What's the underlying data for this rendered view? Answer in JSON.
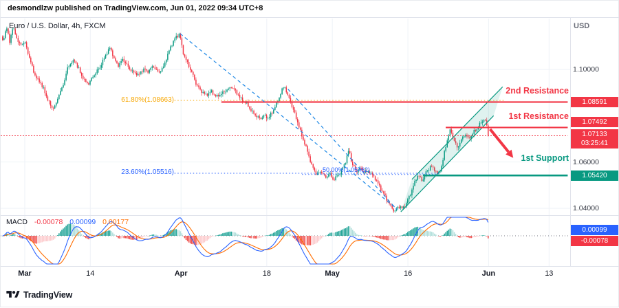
{
  "meta": {
    "published_line": "desmondlzw published on TradingView.com, Jun 01, 2022 09:34 UTC+8",
    "symbol_title": "Euro / U.S. Dollar, 4h, FXCM",
    "currency_label": "USD",
    "brand_name": "TradingView"
  },
  "badges": {
    "res2": "1.08591",
    "res1": "1.07492",
    "last_price": "1.07133",
    "countdown": "03:25:41",
    "support": "1.05420",
    "macd_value": "0.00099",
    "hist_value": "-0.00078"
  },
  "annotations": {
    "res2_text": "2nd Resistance",
    "res1_text": "1st Resistance",
    "sup_text": "1st Support",
    "fib618_label": "61.80%(1.08663)",
    "fib236_label": "23.60%(1.05516)",
    "fib50_label": "50.00%(1.05462)"
  },
  "macd_row": {
    "label": "MACD",
    "hist": "-0.00078",
    "macd": "0.00099",
    "signal": "0.00177"
  },
  "colors": {
    "up": "#089981",
    "down": "#f23645",
    "macd_line": "#2962ff",
    "signal_line": "#ff6d00",
    "hist_pos": "#26a69a",
    "hist_pos_weak": "#b2dfdb",
    "hist_neg": "#ef5350",
    "hist_neg_weak": "#fccbcd",
    "resistance": "#f23645",
    "support": "#089981",
    "fib_618": "#f7a600",
    "fib_236": "#2962ff",
    "trendline": "#1e88e5",
    "grid": "#eef2f7",
    "divider": "#e0e3eb",
    "channel_fill": "rgba(8,153,129,0.13)",
    "channel_line": "#089981",
    "arrow": "#f23645"
  },
  "chart_data": {
    "type": "candlestick",
    "symbol": "Euro / U.S. Dollar",
    "timeframe": "4h",
    "exchange": "FXCM",
    "x_unit": "days since Mar 1 2022",
    "x_domain_days": [
      -4.8,
      107.7
    ],
    "ylim": [
      1.03,
      1.124
    ],
    "last_close": 1.07133,
    "axes": {
      "price_ticks": [
        {
          "label": "1.10000",
          "price": 1.1
        },
        {
          "label": "1.06000",
          "price": 1.06
        },
        {
          "label": "1.04000",
          "price": 1.04
        }
      ],
      "time_ticks": [
        {
          "label": "Mar",
          "day": 0,
          "major": true
        },
        {
          "label": "14",
          "day": 13,
          "major": false
        },
        {
          "label": "Apr",
          "day": 31,
          "major": true
        },
        {
          "label": "18",
          "day": 48,
          "major": false
        },
        {
          "label": "May",
          "day": 61,
          "major": true
        },
        {
          "label": "16",
          "day": 76,
          "major": false
        },
        {
          "label": "Jun",
          "day": 92,
          "major": true
        },
        {
          "label": "13",
          "day": 104,
          "major": false
        }
      ]
    },
    "price_waypoints": [
      [
        -4.4,
        1.1125
      ],
      [
        -3.6,
        1.118
      ],
      [
        -3.0,
        1.112
      ],
      [
        -2.4,
        1.1185
      ],
      [
        -1.8,
        1.115
      ],
      [
        -1.0,
        1.1105
      ],
      [
        0,
        1.112
      ],
      [
        0.8,
        1.106
      ],
      [
        1.6,
        1.1
      ],
      [
        2.4,
        1.096
      ],
      [
        3.2,
        1.094
      ],
      [
        4.0,
        1.09
      ],
      [
        4.8,
        1.0855
      ],
      [
        5.5,
        1.083
      ],
      [
        6.1,
        1.0845
      ],
      [
        6.8,
        1.0895
      ],
      [
        7.6,
        1.093
      ],
      [
        8.4,
        1.1
      ],
      [
        9.2,
        1.103
      ],
      [
        10.0,
        1.1038
      ],
      [
        10.9,
        1.099
      ],
      [
        11.8,
        1.0955
      ],
      [
        12.6,
        1.0935
      ],
      [
        13.3,
        1.096
      ],
      [
        14.2,
        1.099
      ],
      [
        15.0,
        1.101
      ],
      [
        16.0,
        1.106
      ],
      [
        17.0,
        1.1095
      ],
      [
        17.8,
        1.104
      ],
      [
        18.6,
        1.1015
      ],
      [
        19.5,
        1.1045
      ],
      [
        20.5,
        1.101
      ],
      [
        21.5,
        1.099
      ],
      [
        22.5,
        1.0975
      ],
      [
        23.5,
        1.1
      ],
      [
        24.5,
        1.099
      ],
      [
        25.5,
        1.1015
      ],
      [
        26.5,
        1.0985
      ],
      [
        27.5,
        1.101
      ],
      [
        28.3,
        1.106
      ],
      [
        29.1,
        1.1105
      ],
      [
        30.0,
        1.114
      ],
      [
        30.7,
        1.1155
      ],
      [
        31.3,
        1.108
      ],
      [
        32.0,
        1.104
      ],
      [
        33.0,
        1.0995
      ],
      [
        34.0,
        1.094
      ],
      [
        35.0,
        1.0905
      ],
      [
        36.0,
        1.089
      ],
      [
        37.0,
        1.0905
      ],
      [
        38.0,
        1.088
      ],
      [
        39.0,
        1.0895
      ],
      [
        40.0,
        1.091
      ],
      [
        41.0,
        1.0925
      ],
      [
        42.0,
        1.09
      ],
      [
        43.0,
        1.087
      ],
      [
        44.0,
        1.0852
      ],
      [
        45.0,
        1.082
      ],
      [
        45.8,
        1.08
      ],
      [
        46.6,
        1.0785
      ],
      [
        47.4,
        1.08
      ],
      [
        48.2,
        1.079
      ],
      [
        49.0,
        1.081
      ],
      [
        50.0,
        1.0855
      ],
      [
        51.0,
        1.091
      ],
      [
        51.6,
        1.0925
      ],
      [
        52.3,
        1.088
      ],
      [
        53.0,
        1.084
      ],
      [
        54.0,
        1.078
      ],
      [
        55.0,
        1.071
      ],
      [
        56.0,
        1.065
      ],
      [
        57.0,
        1.058
      ],
      [
        58.0,
        1.0545
      ],
      [
        58.8,
        1.056
      ],
      [
        59.6,
        1.053
      ],
      [
        60.4,
        1.0555
      ],
      [
        61.2,
        1.052
      ],
      [
        62.0,
        1.054
      ],
      [
        62.8,
        1.056
      ],
      [
        63.6,
        1.06
      ],
      [
        64.3,
        1.065
      ],
      [
        65.0,
        1.059
      ],
      [
        65.8,
        1.056
      ],
      [
        66.6,
        1.0575
      ],
      [
        67.4,
        1.0555
      ],
      [
        68.2,
        1.056
      ],
      [
        69.0,
        1.0545
      ],
      [
        70.0,
        1.051
      ],
      [
        71.0,
        1.047
      ],
      [
        72.0,
        1.043
      ],
      [
        72.8,
        1.04
      ],
      [
        73.5,
        1.0388
      ],
      [
        74.2,
        1.041
      ],
      [
        74.9,
        1.0398
      ],
      [
        75.6,
        1.042
      ],
      [
        76.3,
        1.045
      ],
      [
        77.1,
        1.05
      ],
      [
        78.0,
        1.0545
      ],
      [
        78.8,
        1.052
      ],
      [
        79.6,
        1.0555
      ],
      [
        80.4,
        1.058
      ],
      [
        81.2,
        1.057
      ],
      [
        82.0,
        1.0545
      ],
      [
        82.8,
        1.059
      ],
      [
        83.6,
        1.068
      ],
      [
        84.4,
        1.074
      ],
      [
        85.1,
        1.07
      ],
      [
        85.8,
        1.066
      ],
      [
        86.5,
        1.069
      ],
      [
        87.3,
        1.072
      ],
      [
        88.1,
        1.07
      ],
      [
        88.9,
        1.0725
      ],
      [
        89.7,
        1.0745
      ],
      [
        90.5,
        1.077
      ],
      [
        91.2,
        1.0787
      ],
      [
        91.6,
        1.076
      ],
      [
        92.0,
        1.07133
      ]
    ],
    "levels": [
      {
        "name": "2nd-resistance",
        "price": 1.08591,
        "from_day": 39,
        "to_day": 107.7,
        "style": "solid",
        "color": "#f23645",
        "width": 2.2
      },
      {
        "name": "1st-resistance",
        "price": 1.07492,
        "from_day": 83.5,
        "to_day": 107.7,
        "style": "solid",
        "color": "#f23645",
        "width": 2.2
      },
      {
        "name": "1st-support",
        "price": 1.0542,
        "from_day": 79,
        "to_day": 107.7,
        "style": "solid",
        "color": "#089981",
        "width": 2.6
      },
      {
        "name": "fib-61.8",
        "price": 1.08663,
        "from_day": 29.7,
        "to_day": 95,
        "style": "dotted",
        "color": "#f7a600",
        "width": 1
      },
      {
        "name": "fib-23.6",
        "price": 1.05516,
        "from_day": 29.7,
        "to_day": 82.5,
        "style": "dotted",
        "color": "#2962ff",
        "width": 1
      },
      {
        "name": "fib-50",
        "price": 1.05462,
        "from_day": 55,
        "to_day": 82,
        "style": "dotted",
        "color": "#2962ff",
        "width": 1
      },
      {
        "name": "last-price",
        "price": 1.07133,
        "from_day": -4.8,
        "to_day": 107.7,
        "style": "dashed",
        "color": "#f23645",
        "width": 1
      }
    ],
    "trendlines": [
      {
        "name": "descending-trendline-upper",
        "from": [
          30.8,
          1.1155
        ],
        "to": [
          73.8,
          1.0398
        ]
      },
      {
        "name": "descending-trendline-lower",
        "from": [
          52.2,
          1.0915
        ],
        "to": [
          73.8,
          1.0395
        ]
      }
    ],
    "channel": {
      "lower": {
        "from": [
          74.6,
          1.0385
        ],
        "to": [
          93.0,
          1.08
        ]
      },
      "upper": {
        "from": [
          76.8,
          1.0525
        ],
        "to": [
          94.8,
          1.0925
        ]
      }
    },
    "arrow": {
      "from": [
        92.3,
        1.0742
      ],
      "to": [
        96.9,
        1.0618
      ]
    },
    "macd_display": {
      "hist": -0.00078,
      "macd": 0.00099,
      "signal": 0.00177
    }
  }
}
